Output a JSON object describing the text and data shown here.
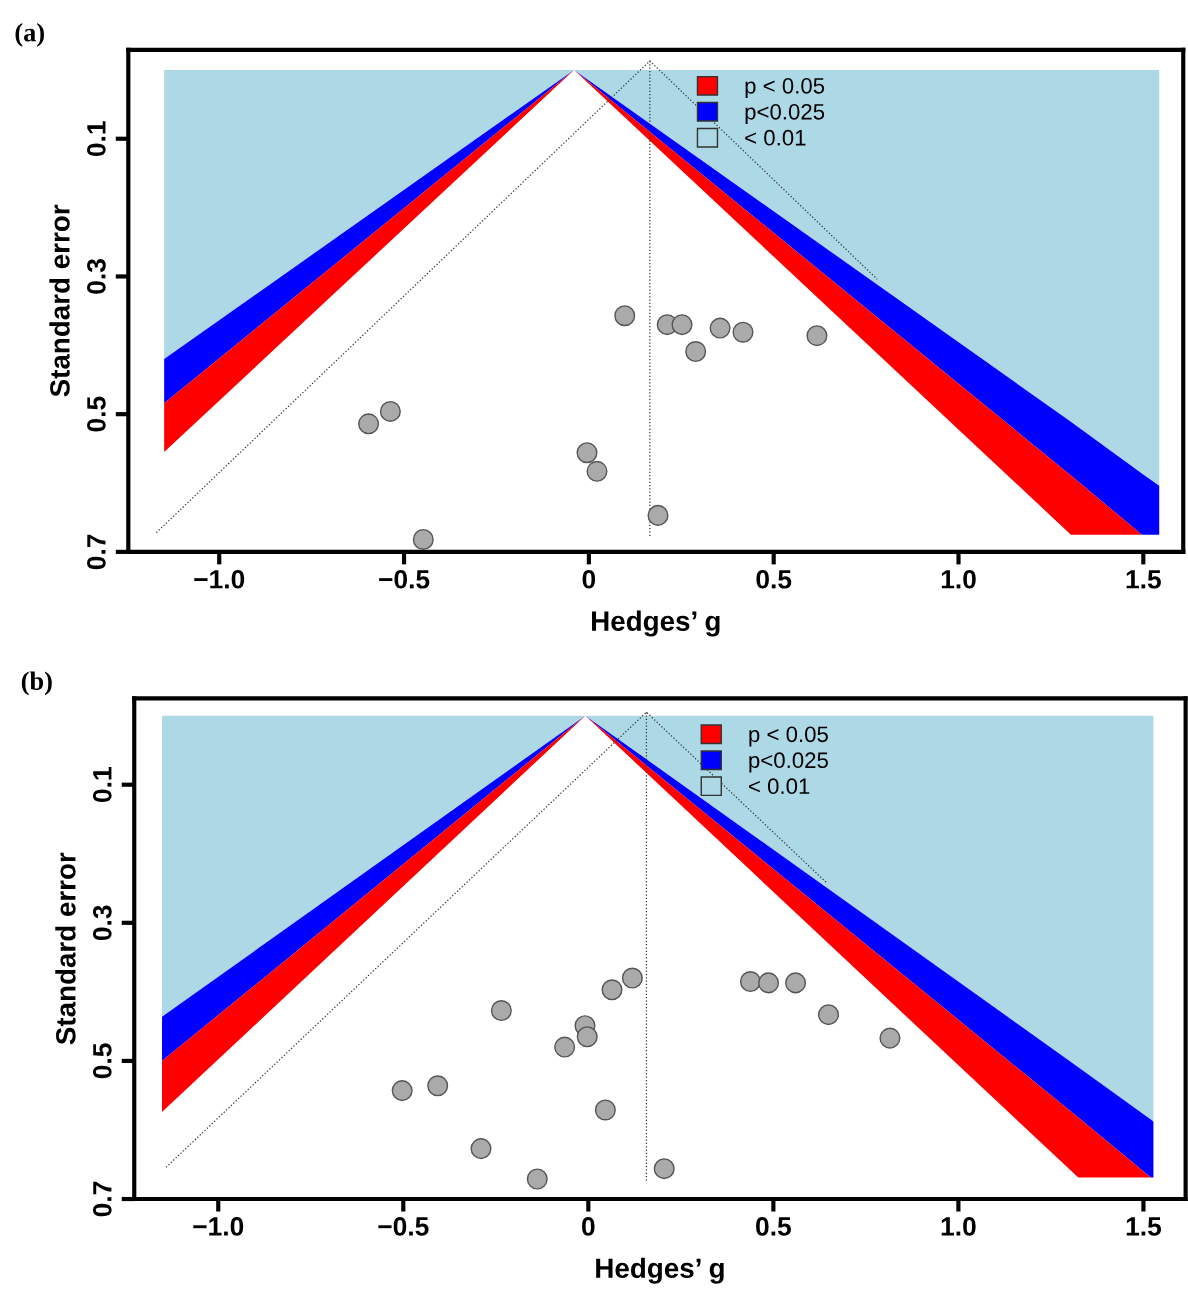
{
  "chart_data": [
    {
      "type": "scatter",
      "title": "(a)",
      "xlabel": "Hedges’ g",
      "ylabel": "Standard error",
      "xlim": [
        -1.246,
        1.608
      ],
      "ylim": [
        0.7,
        -0.029
      ],
      "xticks": [
        {
          "value": -1,
          "label": "−1.0"
        },
        {
          "value": -0.5,
          "label": "−0.5"
        },
        0,
        0.5,
        {
          "value": 1,
          "label": "1.0"
        },
        1.5
      ],
      "yticks": [
        0.1,
        0.3,
        0.5,
        0.7
      ],
      "legend": "top",
      "stacked": true,
      "grid": false,
      "series": [
        {
          "type": "area",
          "name": "< 0.01",
          "color": "#add8e6",
          "x": [
            -1.149,
            -0.04,
            1.304,
            1.496,
            1.543
          ],
          "values": [
            0.42,
            0,
            0.511,
            0.586,
            0.604
          ]
        },
        {
          "type": "area",
          "name": "p<0.025",
          "color": "#0000ff",
          "x": [
            -1.149,
            -0.04,
            1.304,
            1.496,
            1.543
          ],
          "values": [
            0.064,
            0,
            0.078,
            0.089,
            0.071
          ]
        },
        {
          "type": "area",
          "name": "p < 0.05",
          "color": "#ff0000",
          "x": [
            -1.149,
            -0.04,
            1.304,
            1.496
          ],
          "values": [
            0.071,
            0,
            0.086,
            0
          ]
        },
        {
          "type": "line",
          "color": "#333333",
          "line_style": "dotted",
          "x": [
            0.165,
            0.165
          ],
          "values": [
            -0.013,
            0.677
          ]
        },
        {
          "type": "line",
          "color": "#333333",
          "line_style": "dotted",
          "x": [
            -1.17,
            0.165,
            0.78
          ],
          "values": [
            0.672,
            -0.013,
            0.304
          ]
        },
        {
          "color": "#aaaaaa",
          "marker": "circle",
          "x": [
            0.097,
            0.212,
            0.252,
            0.289,
            0.355,
            0.417,
            0.617,
            -0.596,
            -0.537,
            -0.005,
            0.022,
            0.187,
            -0.448
          ],
          "values": [
            0.357,
            0.37,
            0.37,
            0.409,
            0.375,
            0.381,
            0.386,
            0.514,
            0.496,
            0.556,
            0.583,
            0.647,
            0.682
          ]
        }
      ]
    },
    {
      "type": "scatter",
      "title": "(b)",
      "xlabel": "Hedges’ g",
      "ylabel": "Standard error",
      "xlim": [
        -1.227,
        1.614
      ],
      "ylim": [
        0.7,
        -0.025
      ],
      "xticks": [
        {
          "value": -1,
          "label": "−1.0"
        },
        {
          "value": -0.5,
          "label": "−0.5"
        },
        0,
        0.5,
        {
          "value": 1,
          "label": "1.0"
        },
        1.5
      ],
      "yticks": [
        0.1,
        0.3,
        0.5,
        0.7
      ],
      "legend": "top",
      "stacked": true,
      "grid": false,
      "series": [
        {
          "type": "area",
          "name": "< 0.01",
          "color": "#add8e6",
          "x": [
            -1.152,
            -0.008,
            1.324,
            1.52,
            1.527
          ],
          "values": [
            0.436,
            0,
            0.509,
            0.585,
            0.588
          ]
        },
        {
          "type": "area",
          "name": "p<0.025",
          "color": "#0000ff",
          "x": [
            -1.152,
            -0.008,
            1.324,
            1.52,
            1.527
          ],
          "values": [
            0.064,
            0,
            0.073,
            0.084,
            0.081
          ]
        },
        {
          "type": "area",
          "name": "p < 0.05",
          "color": "#ff0000",
          "x": [
            -1.152,
            -0.008,
            1.324,
            1.52
          ],
          "values": [
            0.074,
            0,
            0.087,
            0
          ]
        },
        {
          "type": "line",
          "color": "#333333",
          "line_style": "dotted",
          "x": [
            0.157,
            0.157
          ],
          "values": [
            -0.005,
            0.673
          ]
        },
        {
          "type": "line",
          "color": "#333333",
          "line_style": "dotted",
          "x": [
            -1.141,
            0.157,
            0.644
          ],
          "values": [
            0.654,
            -0.005,
            0.242
          ]
        },
        {
          "color": "#aaaaaa",
          "marker": "circle",
          "x": [
            0.119,
            0.064,
            -0.235,
            -0.009,
            -0.003,
            -0.064,
            -0.503,
            -0.407,
            0.046,
            -0.29,
            -0.138,
            0.205,
            0.438,
            0.487,
            0.56,
            0.649,
            0.815
          ],
          "values": [
            0.38,
            0.397,
            0.427,
            0.449,
            0.465,
            0.48,
            0.543,
            0.536,
            0.571,
            0.627,
            0.671,
            0.656,
            0.385,
            0.387,
            0.387,
            0.433,
            0.467
          ]
        }
      ]
    }
  ]
}
